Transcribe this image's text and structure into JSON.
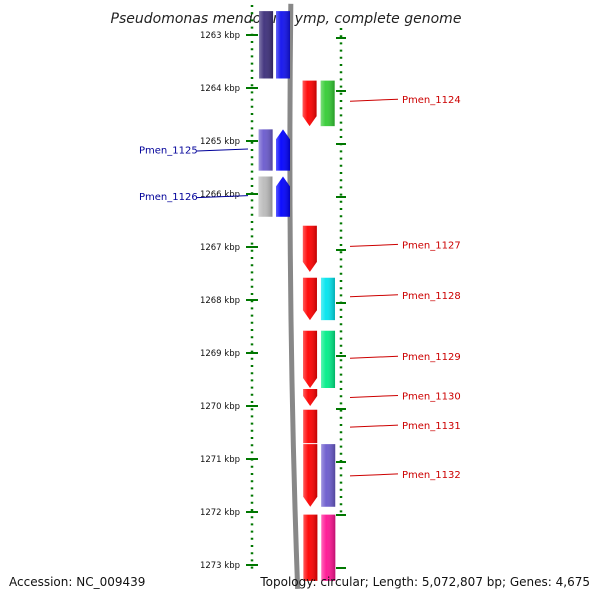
{
  "title": "Pseudomonas mendocina ymp, complete genome",
  "footer": {
    "accession": "Accession: NC_009439",
    "topology": "Topology: circular; Length: 5,072,807 bp; Genes: 4,675"
  },
  "axis": {
    "unit": "kbp",
    "ticks": [
      "1263 kbp",
      "1264 kbp",
      "1265 kbp",
      "1266 kbp",
      "1267 kbp",
      "1268 kbp",
      "1269 kbp",
      "1270 kbp",
      "1271 kbp",
      "1272 kbp",
      "1273 kbp"
    ],
    "range_kbp": [
      1262.6,
      1273.3
    ]
  },
  "colors": {
    "left_label": "#000099",
    "right_label": "#cc0000",
    "tick_green": "#007700",
    "backbone": "#888888"
  },
  "labels_left": [
    {
      "text": "Pmen_1125",
      "at_kbp": 1265.17
    },
    {
      "text": "Pmen_1126",
      "at_kbp": 1266.05
    }
  ],
  "labels_right": [
    {
      "text": "Pmen_1124",
      "at_kbp": 1264.23
    },
    {
      "text": "Pmen_1127",
      "at_kbp": 1266.97
    },
    {
      "text": "Pmen_1128",
      "at_kbp": 1267.92
    },
    {
      "text": "Pmen_1129",
      "at_kbp": 1269.08
    },
    {
      "text": "Pmen_1130",
      "at_kbp": 1269.82
    },
    {
      "text": "Pmen_1131",
      "at_kbp": 1270.38
    },
    {
      "text": "Pmen_1132",
      "at_kbp": 1271.3
    }
  ],
  "genes": [
    {
      "track": "left-outer",
      "start": 1262.55,
      "end": 1263.82,
      "color": "#3c2e7a",
      "dir": "none"
    },
    {
      "track": "left-inner",
      "start": 1262.55,
      "end": 1263.82,
      "color": "#1010ee",
      "dir": "none"
    },
    {
      "track": "left-outer",
      "start": 1264.78,
      "end": 1265.56,
      "color": "#6a5acd",
      "dir": "none"
    },
    {
      "track": "left-inner",
      "start": 1264.78,
      "end": 1265.56,
      "color": "#0000ff",
      "dir": "up"
    },
    {
      "track": "left-outer",
      "start": 1265.67,
      "end": 1266.43,
      "color": "#bbbbbb",
      "dir": "none"
    },
    {
      "track": "left-inner",
      "start": 1265.67,
      "end": 1266.43,
      "color": "#0000ff",
      "dir": "up"
    },
    {
      "track": "right-inner",
      "start": 1263.86,
      "end": 1264.72,
      "color": "#ff0000",
      "dir": "down"
    },
    {
      "track": "right-outer",
      "start": 1263.86,
      "end": 1264.72,
      "color": "#33cc33",
      "dir": "none"
    },
    {
      "track": "right-inner",
      "start": 1266.6,
      "end": 1267.47,
      "color": "#ff0000",
      "dir": "down"
    },
    {
      "track": "right-inner",
      "start": 1267.58,
      "end": 1268.38,
      "color": "#ff0000",
      "dir": "down"
    },
    {
      "track": "right-outer",
      "start": 1267.58,
      "end": 1268.38,
      "color": "#00e5ee",
      "dir": "none"
    },
    {
      "track": "right-inner",
      "start": 1268.58,
      "end": 1269.66,
      "color": "#ff0000",
      "dir": "down"
    },
    {
      "track": "right-outer",
      "start": 1268.58,
      "end": 1269.66,
      "color": "#00ee88",
      "dir": "none"
    },
    {
      "track": "right-inner",
      "start": 1269.68,
      "end": 1270.0,
      "color": "#ff0000",
      "dir": "down"
    },
    {
      "track": "right-inner",
      "start": 1270.07,
      "end": 1270.7,
      "color": "#ff0000",
      "dir": "none"
    },
    {
      "track": "right-inner",
      "start": 1270.72,
      "end": 1271.9,
      "color": "#ff0000",
      "dir": "down"
    },
    {
      "track": "right-outer",
      "start": 1270.72,
      "end": 1271.9,
      "color": "#6a5acd",
      "dir": "none"
    },
    {
      "track": "right-inner",
      "start": 1272.05,
      "end": 1273.3,
      "color": "#ff0000",
      "dir": "none"
    },
    {
      "track": "right-outer",
      "start": 1272.05,
      "end": 1273.3,
      "color": "#ff1493",
      "dir": "none"
    }
  ]
}
